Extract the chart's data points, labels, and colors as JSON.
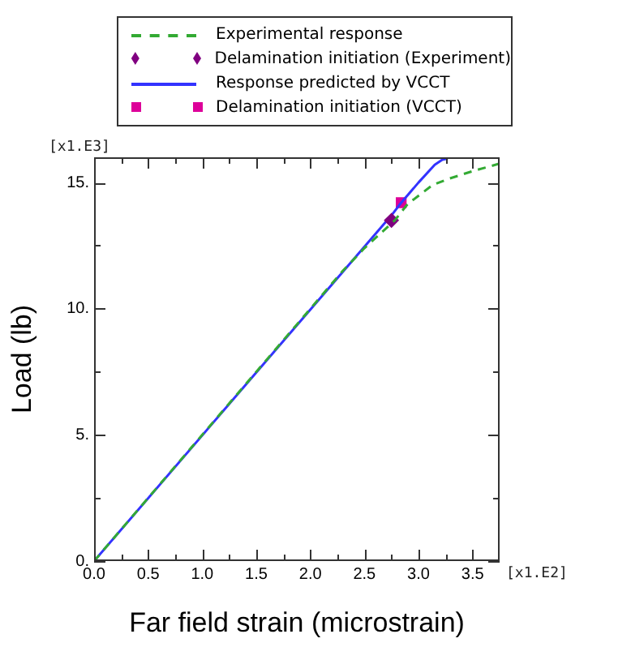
{
  "chart_data": {
    "type": "line",
    "xlabel": "Far field strain (microstrain)",
    "ylabel": "Load (lb)",
    "annotations": [
      "[x1.E3]",
      "[x1.E2]"
    ],
    "xlim": [
      0,
      3.75
    ],
    "ylim": [
      0,
      16
    ],
    "xticks": [
      {
        "value": 0,
        "label": "0.0"
      },
      {
        "value": 0.25,
        "label": null
      },
      {
        "value": 0.5,
        "label": "0.5"
      },
      {
        "value": 0.75,
        "label": null
      },
      {
        "value": 1,
        "label": "1.0"
      },
      {
        "value": 1.25,
        "label": null
      },
      {
        "value": 1.5,
        "label": "1.5"
      },
      {
        "value": 1.75,
        "label": null
      },
      {
        "value": 2,
        "label": "2.0"
      },
      {
        "value": 2.25,
        "label": null
      },
      {
        "value": 2.5,
        "label": "2.5"
      },
      {
        "value": 2.75,
        "label": null
      },
      {
        "value": 3,
        "label": "3.0"
      },
      {
        "value": 3.25,
        "label": null
      },
      {
        "value": 3.5,
        "label": "3.5"
      }
    ],
    "yticks": [
      {
        "value": 0,
        "label": "0."
      },
      {
        "value": 2.5,
        "label": null
      },
      {
        "value": 5,
        "label": "5."
      },
      {
        "value": 7.5,
        "label": null
      },
      {
        "value": 10,
        "label": "10."
      },
      {
        "value": 12.5,
        "label": null
      },
      {
        "value": 15,
        "label": "15."
      }
    ],
    "grid": false,
    "legend": "top",
    "series": [
      {
        "name": "Experimental response",
        "color": "#33aa33",
        "line_style": "dashed",
        "marker": "none",
        "x": [
          0,
          2.3,
          2.5,
          2.78,
          2.9,
          3.13,
          3.28,
          3.5,
          3.75
        ],
        "values": [
          0,
          11.5,
          12.4,
          13.5,
          14.15,
          14.9,
          15.15,
          15.45,
          15.75
        ]
      },
      {
        "name": "Delamination initiation (Experiment)",
        "type": "scatter",
        "color": "#800080",
        "marker": "diamond",
        "x": [
          2.75
        ],
        "values": [
          13.5
        ]
      },
      {
        "name": "Response predicted by VCCT",
        "color": "#3333ff",
        "line_style": "solid",
        "marker": "none",
        "x": [
          0,
          2.75,
          2.84,
          3.0,
          3.15,
          3.22,
          3.27
        ],
        "values": [
          0,
          13.7,
          14.2,
          15.0,
          15.7,
          15.9,
          15.95
        ]
      },
      {
        "name": "Delamination initiation (VCCT)",
        "type": "scatter",
        "color": "#dd0099",
        "marker": "square",
        "x": [
          2.84
        ],
        "values": [
          14.2
        ]
      }
    ]
  }
}
